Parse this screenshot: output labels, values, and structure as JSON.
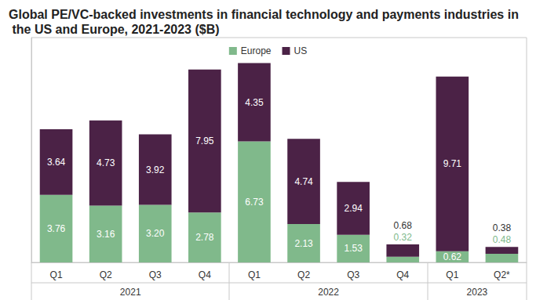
{
  "chart_data": {
    "type": "bar",
    "title": "Global PE/VC-backed investments in financial technology and payments industries in the US and Europe, 2021-2023 ($B)",
    "categories": [
      "Q1",
      "Q2",
      "Q3",
      "Q4",
      "Q1",
      "Q2",
      "Q3",
      "Q4",
      "Q1",
      "Q2*"
    ],
    "category_groups": [
      {
        "label": "2021",
        "size": 4
      },
      {
        "label": "2022",
        "size": 4
      },
      {
        "label": "2023",
        "size": 2
      }
    ],
    "series": [
      {
        "name": "Europe",
        "color": "#80b98b",
        "values": [
          3.76,
          3.16,
          3.2,
          2.78,
          6.73,
          2.13,
          1.53,
          0.32,
          0.62,
          0.48
        ],
        "value_labels": [
          "3.76",
          "3.16",
          "3.20",
          "2.78",
          "6.73",
          "2.13",
          "1.53",
          "0.32",
          "0.62",
          "0.48"
        ]
      },
      {
        "name": "US",
        "color": "#4b2246",
        "values": [
          3.64,
          4.73,
          3.92,
          7.95,
          4.35,
          4.74,
          2.94,
          0.68,
          9.71,
          0.38
        ],
        "value_labels": [
          "3.64",
          "4.73",
          "3.92",
          "7.95",
          "4.35",
          "4.74",
          "2.94",
          "0.68",
          "9.71",
          "0.38"
        ]
      }
    ],
    "stacked": true,
    "data_labels": true,
    "ylim": [
      0,
      12.5
    ],
    "tick_labels": "x",
    "grid": false,
    "legend": "top"
  }
}
